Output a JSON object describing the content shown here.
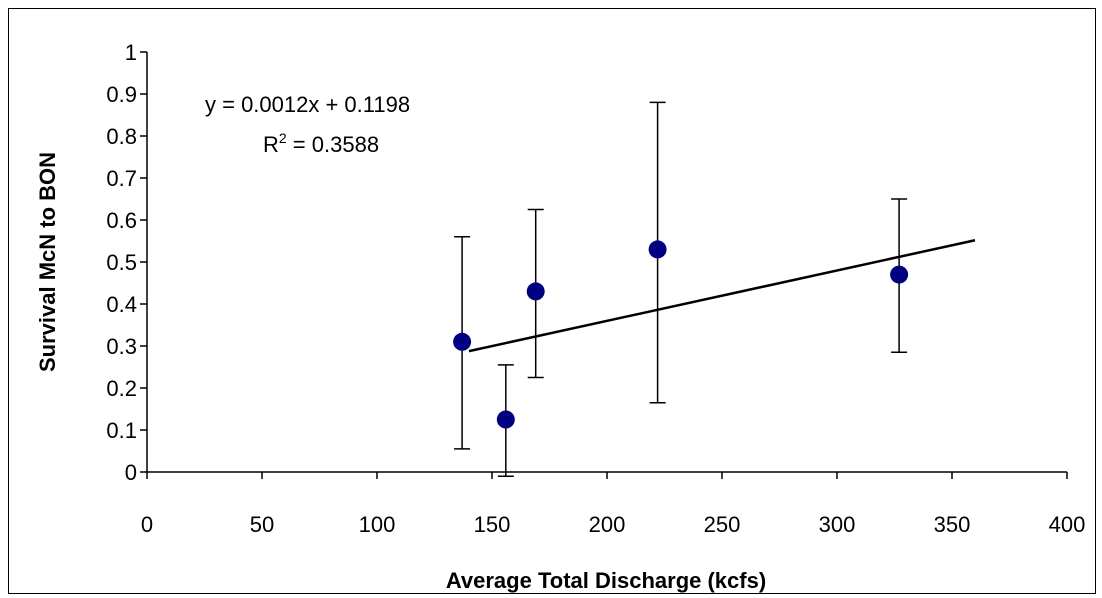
{
  "chart_data": {
    "type": "scatter",
    "title": "",
    "xlabel": "Average Total Discharge (kcfs)",
    "ylabel": "Survival McN to BON",
    "xlim": [
      0,
      400
    ],
    "ylim": [
      0,
      1
    ],
    "x_ticks": [
      "0",
      "50",
      "100",
      "150",
      "200",
      "250",
      "300",
      "350",
      "400"
    ],
    "y_ticks": [
      "0",
      "0.1",
      "0.2",
      "0.3",
      "0.4",
      "0.5",
      "0.6",
      "0.7",
      "0.8",
      "0.9",
      "1"
    ],
    "grid": false,
    "legend": "none",
    "marker_color": "#000080",
    "series": [
      {
        "points": [
          {
            "x": 137,
            "y": 0.31,
            "y_low": 0.055,
            "y_high": 0.56
          },
          {
            "x": 156,
            "y": 0.125,
            "y_low": -0.01,
            "y_high": 0.255
          },
          {
            "x": 169,
            "y": 0.43,
            "y_low": 0.225,
            "y_high": 0.625
          },
          {
            "x": 222,
            "y": 0.53,
            "y_low": 0.165,
            "y_high": 0.88
          },
          {
            "x": 327,
            "y": 0.47,
            "y_low": 0.285,
            "y_high": 0.65
          }
        ]
      }
    ],
    "trendline": {
      "slope": 0.0012,
      "intercept": 0.1198,
      "x_start": 140,
      "x_end": 360,
      "equation": "y = 0.0012x + 0.1198",
      "r2_label": "R",
      "r2_sup": "2",
      "r2_value": " = 0.3588"
    }
  }
}
